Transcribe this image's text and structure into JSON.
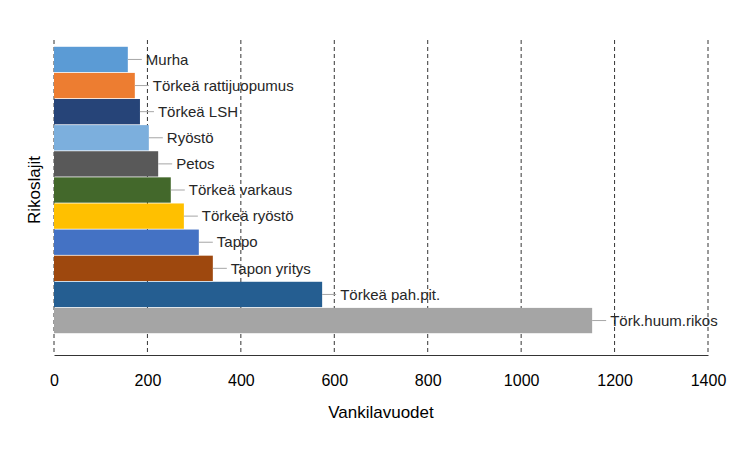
{
  "chart_data": {
    "type": "bar",
    "orientation": "horizontal",
    "x_label": "Vankilavuodet",
    "y_label": "Rikoslajit",
    "categories": [
      "Murha",
      "Törkeä rattijuopumus",
      "Törkeä LSH",
      "Ryöstö",
      "Petos",
      "Törkeä varkaus",
      "Törkeä ryöstö",
      "Tappo",
      "Tapon yritys",
      "Törkeä pah.pit.",
      "Törk.huum.rikos"
    ],
    "values": [
      158,
      173,
      184,
      203,
      223,
      250,
      278,
      310,
      340,
      574,
      1152
    ],
    "colors": [
      "#5b9bd5",
      "#ed7d31",
      "#264478",
      "#7cafdd",
      "#595959",
      "#43682b",
      "#ffc000",
      "#4472c4",
      "#9e480e",
      "#255e91",
      "#a5a5a5"
    ],
    "xlim": [
      0,
      1400
    ],
    "xticks": [
      0,
      200,
      400,
      600,
      800,
      1000,
      1200,
      1400
    ],
    "grid": true
  }
}
